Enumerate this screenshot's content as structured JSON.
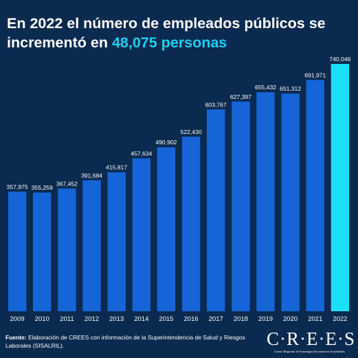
{
  "title": {
    "prefix": "En 2022 el número de empleados públicos se incrementó en",
    "highlight": "48,075 personas"
  },
  "colors": {
    "background": "#0b2a4f",
    "bar": "#1565d8",
    "bar_highlight": "#19e0f7",
    "title_highlight": "#19d0f0",
    "text": "#ffffff"
  },
  "chart_data": {
    "type": "bar",
    "categories": [
      "2009",
      "2010",
      "2011",
      "2012",
      "2013",
      "2014",
      "2015",
      "2016",
      "2017",
      "2018",
      "2019",
      "2020",
      "2021",
      "2022"
    ],
    "values": [
      357975,
      355259,
      367452,
      391684,
      415817,
      457634,
      490902,
      522430,
      603767,
      627397,
      655432,
      651312,
      691971,
      740046
    ],
    "value_labels": [
      "357,975",
      "355,259",
      "367,452",
      "391,684",
      "415,817",
      "457,634",
      "490,902",
      "522,430",
      "603,767",
      "627,397",
      "655,432",
      "651,312",
      "691,971",
      "740,046"
    ],
    "highlight_category": "2022",
    "ylim": [
      0,
      740046
    ],
    "grid": false,
    "title": "",
    "xlabel": "",
    "ylabel": ""
  },
  "footer": {
    "label": "Fuente:",
    "text": "Elaboración de CREES con información de la Superintendencia de Salud y Riesgos Laborales (SISALRIL)."
  },
  "logo": {
    "name": "C·R·E·E·S",
    "subtitle": "Centro Regional de Estrategias Económicas Sostenibles"
  }
}
